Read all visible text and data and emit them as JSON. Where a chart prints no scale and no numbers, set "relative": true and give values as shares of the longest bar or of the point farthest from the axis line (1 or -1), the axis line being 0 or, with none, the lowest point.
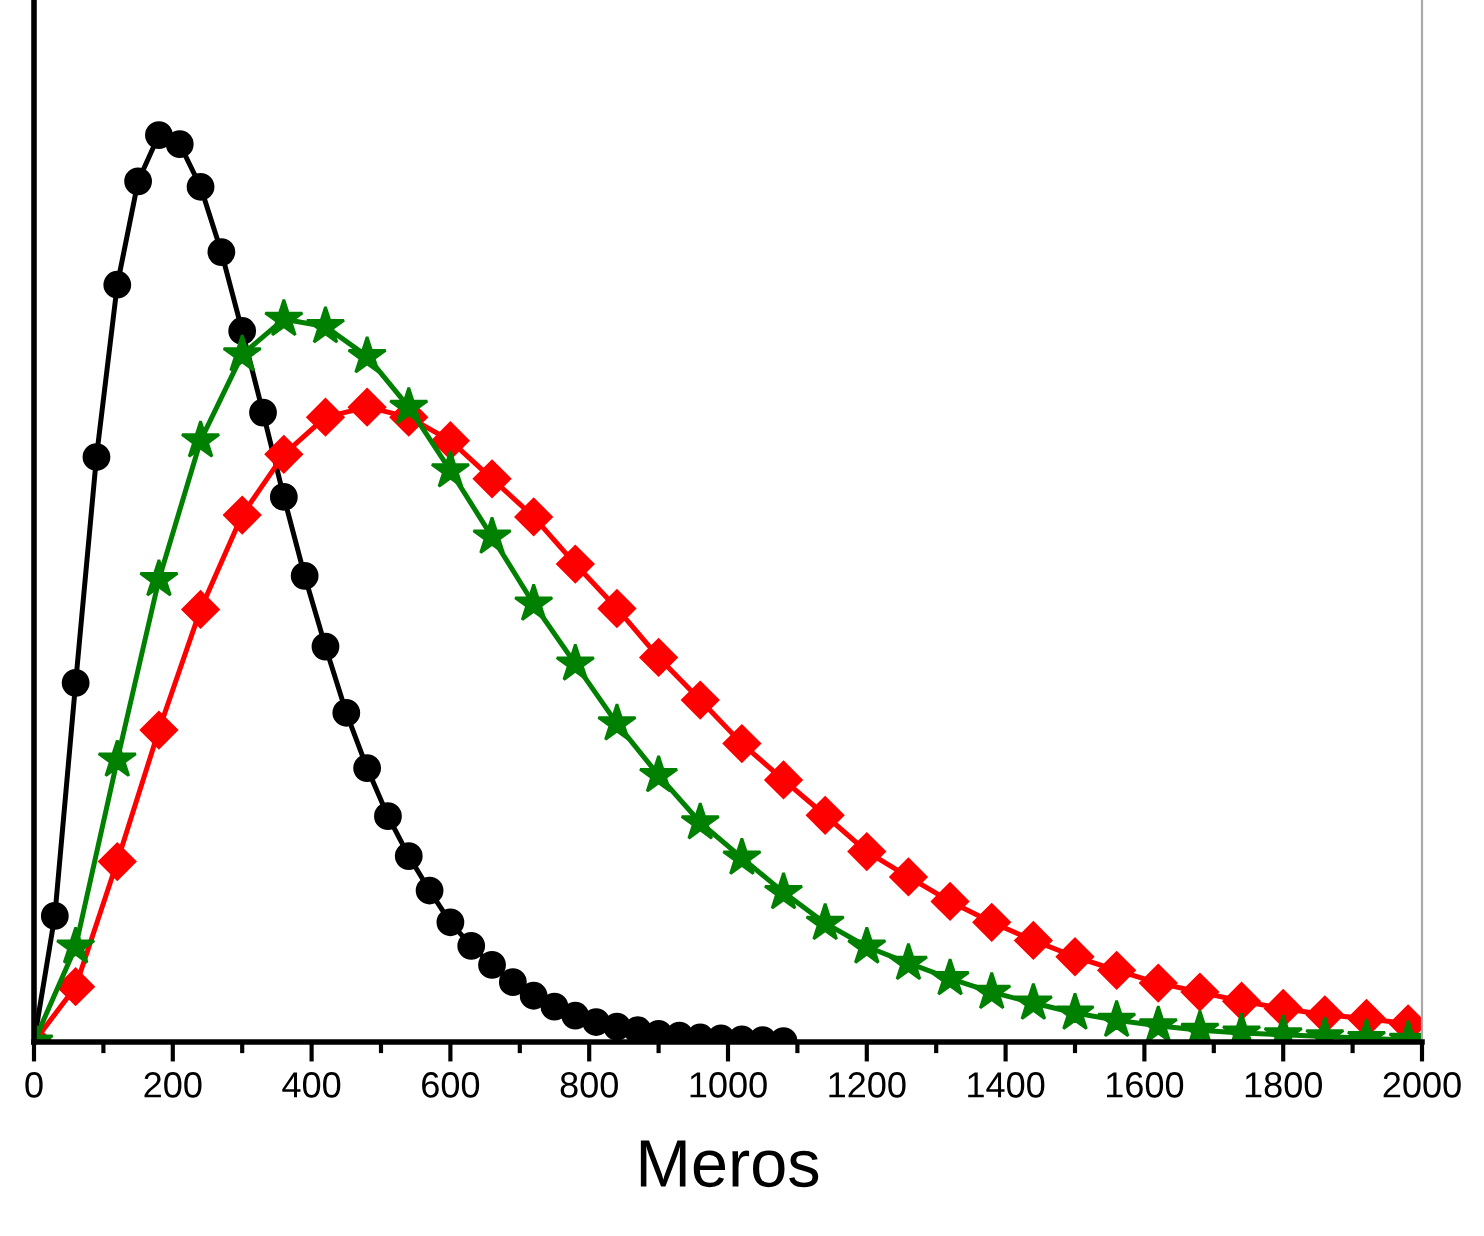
{
  "chart_data": {
    "type": "line",
    "xlabel": "Meros",
    "relative": true,
    "xlim": [
      0,
      2000
    ],
    "xticks": [
      0,
      {
        "value": 100,
        "label": null
      },
      200,
      {
        "value": 300,
        "label": null
      },
      400,
      {
        "value": 500,
        "label": null
      },
      600,
      {
        "value": 700,
        "label": null
      },
      800,
      {
        "value": 900,
        "label": null
      },
      1000,
      {
        "value": 1100,
        "label": null
      },
      1200,
      {
        "value": 1300,
        "label": null
      },
      1400,
      {
        "value": 1500,
        "label": null
      },
      1600,
      {
        "value": 1700,
        "label": null
      },
      1800,
      {
        "value": 1900,
        "label": null
      },
      2000
    ],
    "tick_labels": "x",
    "grid": false,
    "line_style": "solid",
    "series": [
      {
        "color": "#000000",
        "marker": "circle",
        "x": [
          0,
          30,
          60,
          90,
          120,
          150,
          180,
          210,
          240,
          270,
          300,
          330,
          360,
          390,
          420,
          450,
          480,
          510,
          540,
          570,
          600,
          630,
          660,
          690,
          720,
          750,
          780,
          810,
          840,
          870,
          900,
          930,
          960,
          990,
          1020,
          1050,
          1080
        ],
        "values": [
          0,
          0.139,
          0.396,
          0.645,
          0.835,
          0.949,
          1.0,
          0.99,
          0.943,
          0.871,
          0.784,
          0.694,
          0.601,
          0.514,
          0.436,
          0.363,
          0.302,
          0.249,
          0.205,
          0.167,
          0.132,
          0.106,
          0.085,
          0.066,
          0.051,
          0.039,
          0.029,
          0.022,
          0.017,
          0.013,
          0.009,
          0.007,
          0.005,
          0.004,
          0.003,
          0.002,
          0.001
        ]
      },
      {
        "color": "#ff0000",
        "marker": "diamond",
        "x": [
          0,
          60,
          120,
          180,
          240,
          300,
          360,
          420,
          480,
          540,
          600,
          660,
          720,
          780,
          840,
          900,
          960,
          1020,
          1080,
          1140,
          1200,
          1260,
          1320,
          1380,
          1440,
          1500,
          1560,
          1620,
          1680,
          1740,
          1800,
          1860,
          1920,
          1980
        ],
        "values": [
          0,
          0.061,
          0.199,
          0.344,
          0.477,
          0.581,
          0.648,
          0.689,
          0.7,
          0.689,
          0.663,
          0.621,
          0.579,
          0.527,
          0.478,
          0.424,
          0.377,
          0.329,
          0.289,
          0.25,
          0.21,
          0.182,
          0.155,
          0.132,
          0.112,
          0.094,
          0.079,
          0.065,
          0.055,
          0.045,
          0.037,
          0.03,
          0.026,
          0.02
        ]
      },
      {
        "color": "#008000",
        "marker": "star",
        "x": [
          0,
          60,
          120,
          180,
          240,
          300,
          360,
          420,
          480,
          540,
          600,
          660,
          720,
          780,
          840,
          900,
          960,
          1020,
          1080,
          1140,
          1200,
          1260,
          1320,
          1380,
          1440,
          1500,
          1560,
          1620,
          1680,
          1740,
          1800,
          1860,
          1920,
          1980
        ],
        "values": [
          0,
          0.105,
          0.311,
          0.51,
          0.663,
          0.758,
          0.797,
          0.789,
          0.756,
          0.7,
          0.63,
          0.557,
          0.483,
          0.417,
          0.351,
          0.294,
          0.242,
          0.203,
          0.165,
          0.131,
          0.105,
          0.087,
          0.07,
          0.055,
          0.043,
          0.032,
          0.024,
          0.018,
          0.013,
          0.01,
          0.008,
          0.006,
          0.004,
          0.002
        ]
      }
    ]
  }
}
